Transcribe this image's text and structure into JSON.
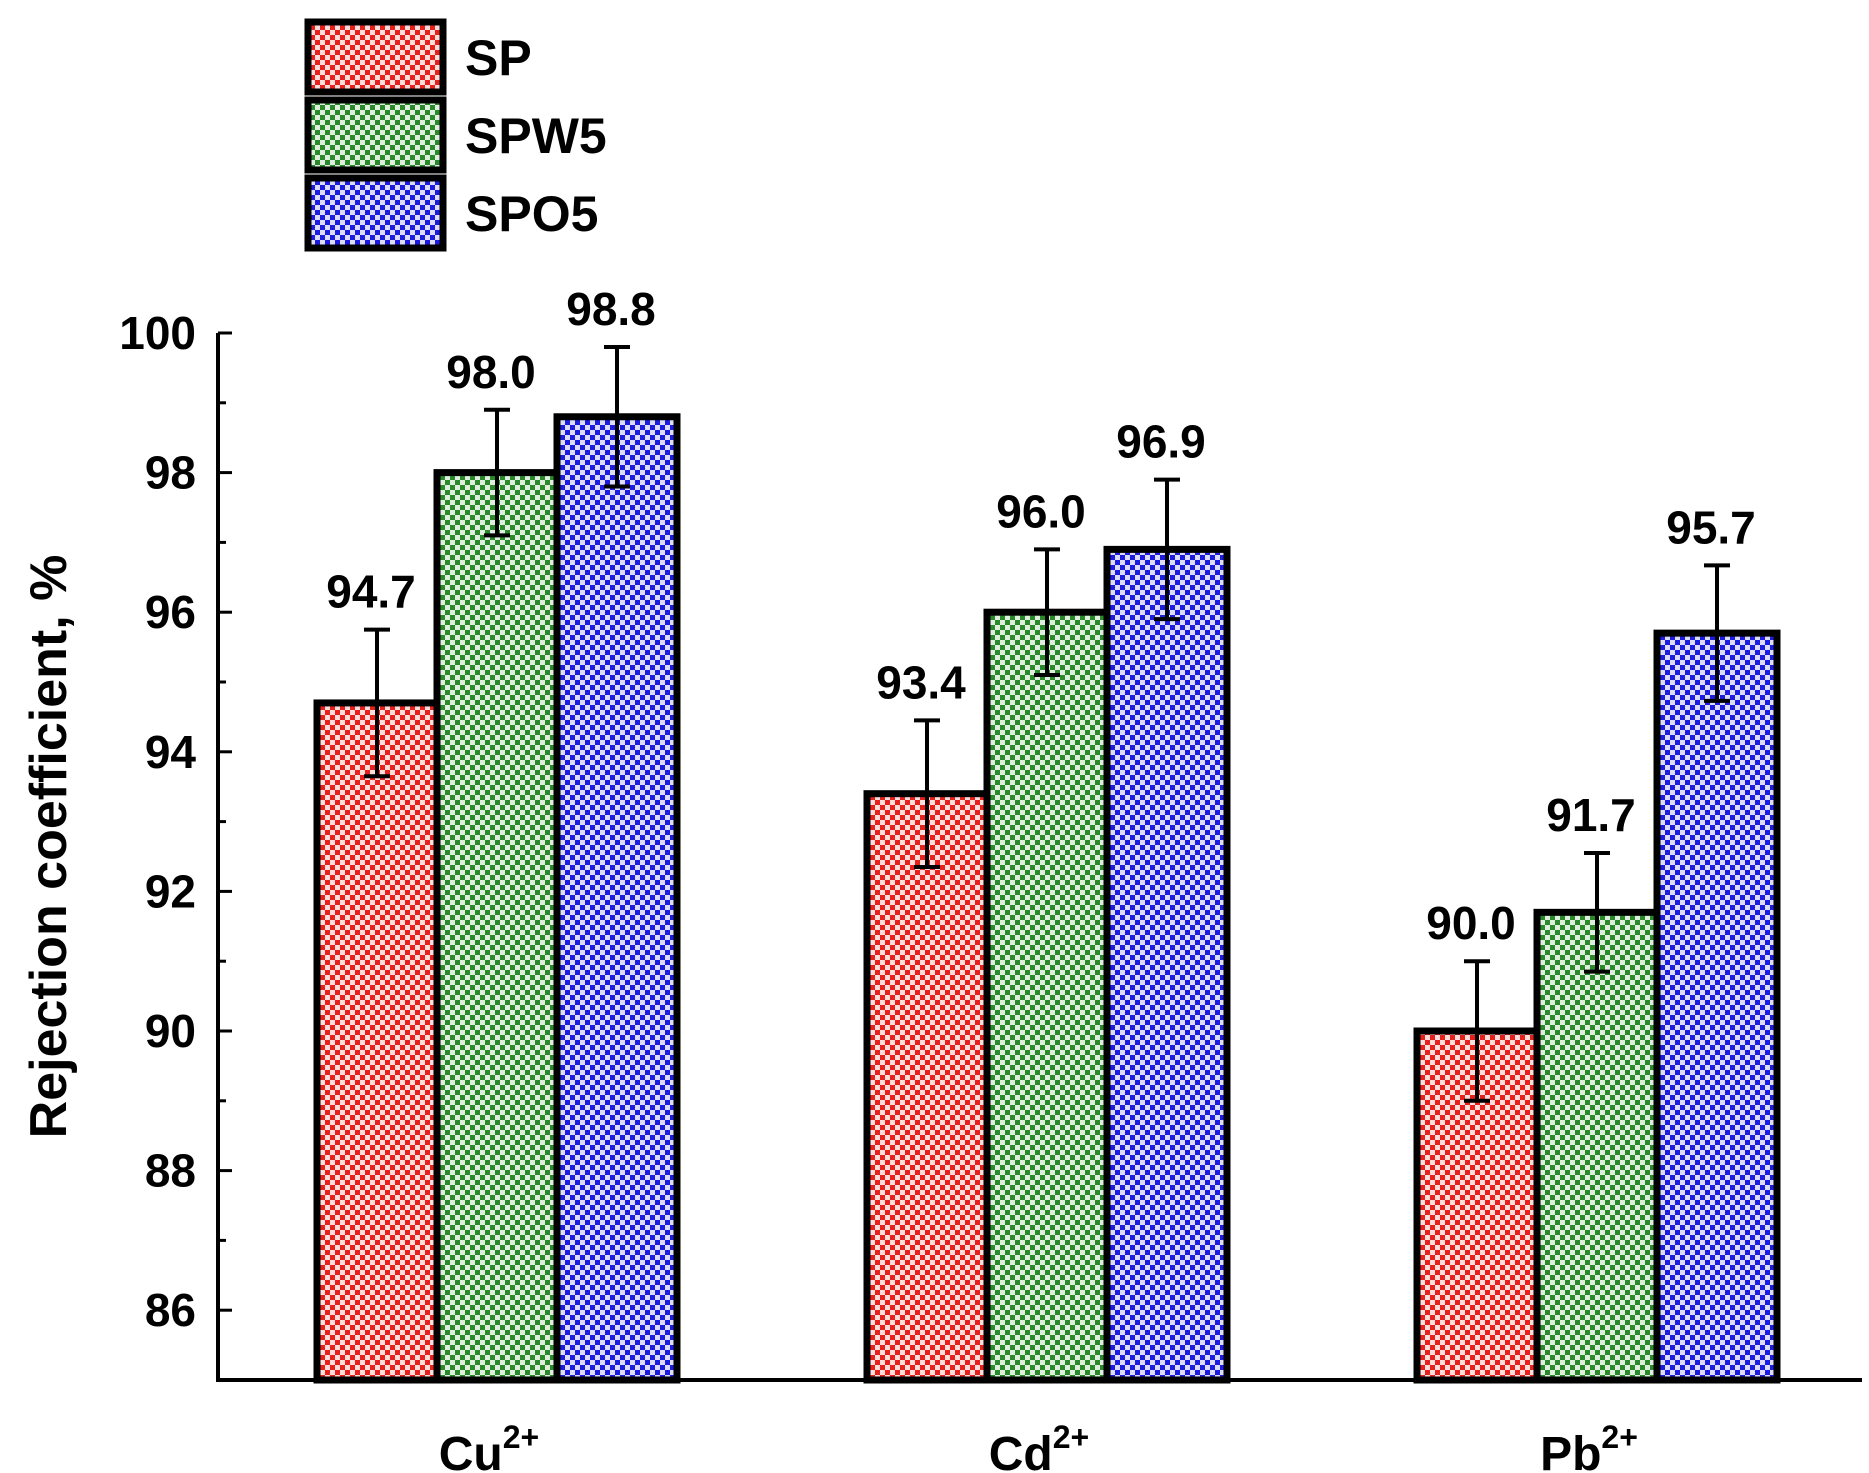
{
  "chart_data": {
    "type": "bar",
    "categories": [
      {
        "base": "Cu",
        "sup": "2+"
      },
      {
        "base": "Cd",
        "sup": "2+"
      },
      {
        "base": "Pb",
        "sup": "2+"
      }
    ],
    "series": [
      {
        "name": "SP",
        "color": "#e8201c",
        "values": [
          94.7,
          93.4,
          90.0
        ],
        "errors": [
          1.05,
          1.05,
          1.0
        ]
      },
      {
        "name": "SPW5",
        "color": "#2a8a2a",
        "values": [
          98.0,
          96.0,
          91.7
        ],
        "errors": [
          0.9,
          0.9,
          0.85
        ]
      },
      {
        "name": "SPO5",
        "color": "#1c1ce0",
        "values": [
          98.8,
          96.9,
          95.7
        ],
        "errors": [
          1.0,
          1.0,
          0.97
        ]
      }
    ],
    "data_labels": [
      [
        "94.7",
        "93.4",
        "90.0"
      ],
      [
        "98.0",
        "96.0",
        "91.7"
      ],
      [
        "98.8",
        "96.9",
        "95.7"
      ]
    ],
    "ylabel": "Rejection coefficient, %",
    "xlabel": "",
    "ylim": [
      85,
      100
    ],
    "yticks": [
      86,
      88,
      90,
      92,
      94,
      96,
      98,
      100
    ],
    "legend_position": "top-left",
    "grid": false
  }
}
